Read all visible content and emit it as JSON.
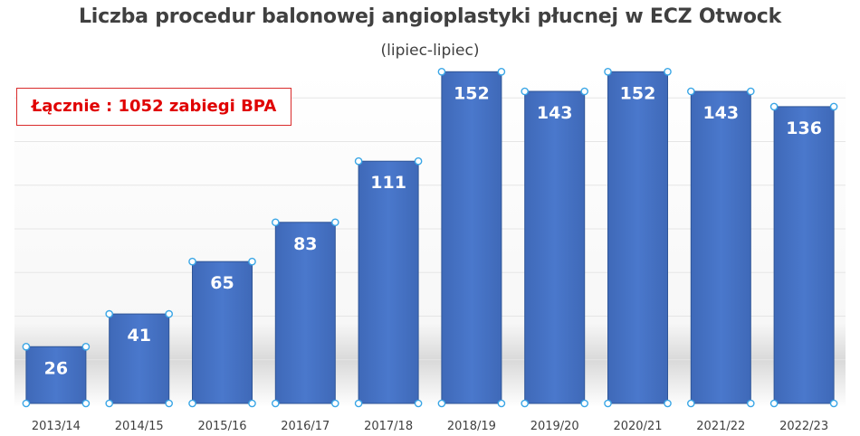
{
  "chart_data": {
    "type": "bar",
    "title": "Liczba procedur balonowej angioplastyki płucnej w ECZ Otwock",
    "subtitle": "(lipiec-lipiec)",
    "annotation": "Łącznie : 1052 zabiegi BPA",
    "categories": [
      "2013/14",
      "2014/15",
      "2015/16",
      "2016/17",
      "2017/18",
      "2018/19",
      "2019/20",
      "2020/21",
      "2021/22",
      "2022/23"
    ],
    "values": [
      26,
      41,
      65,
      83,
      111,
      152,
      143,
      152,
      143,
      136
    ],
    "ylim": [
      0,
      160
    ],
    "grid": true,
    "bar_color": "#4472c4",
    "annotation_color": "#e00000",
    "label_color": "#ffffff"
  }
}
